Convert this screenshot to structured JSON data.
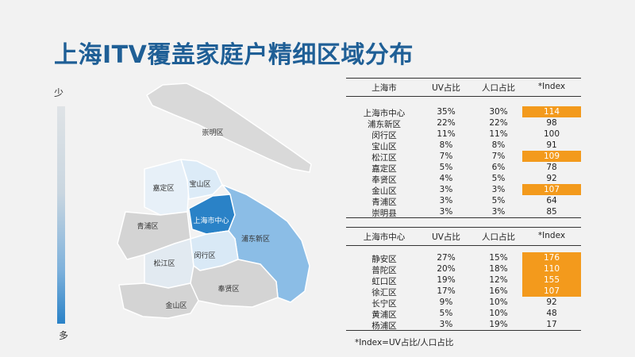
{
  "title": "上海ITV覆盖家庭户精细区域分布",
  "legend": {
    "top_label": "少",
    "bottom_label": "多"
  },
  "map": {
    "districts": [
      {
        "key": "chongming",
        "label": "崇明区",
        "color": "#d9d9d9"
      },
      {
        "key": "baoshan",
        "label": "宝山区",
        "color": "#dcebf7"
      },
      {
        "key": "jiading",
        "label": "嘉定区",
        "color": "#e7f0f8"
      },
      {
        "key": "qingpu",
        "label": "青浦区",
        "color": "#d4d4d4"
      },
      {
        "key": "center",
        "label": "上海市中心",
        "color": "#2a82c7"
      },
      {
        "key": "pudong",
        "label": "浦东新区",
        "color": "#8bbde6"
      },
      {
        "key": "songjiang",
        "label": "松江区",
        "color": "#e2eaf1"
      },
      {
        "key": "minhang",
        "label": "闵行区",
        "color": "#d9e9f6"
      },
      {
        "key": "fengxian",
        "label": "奉贤区",
        "color": "#d4d4d4"
      },
      {
        "key": "jinshan",
        "label": "金山区",
        "color": "#d4d4d4"
      }
    ]
  },
  "table1": {
    "headers": [
      "上海市",
      "UV占比",
      "人口占比",
      "*Index"
    ],
    "rows": [
      {
        "name": "上海市中心",
        "uv": "35%",
        "pop": "30%",
        "index": "114",
        "hl": true
      },
      {
        "name": "浦东新区",
        "uv": "22%",
        "pop": "22%",
        "index": "98",
        "hl": false
      },
      {
        "name": "闵行区",
        "uv": "11%",
        "pop": "11%",
        "index": "100",
        "hl": false
      },
      {
        "name": "宝山区",
        "uv": "8%",
        "pop": "8%",
        "index": "91",
        "hl": false
      },
      {
        "name": "松江区",
        "uv": "7%",
        "pop": "7%",
        "index": "109",
        "hl": true
      },
      {
        "name": "嘉定区",
        "uv": "5%",
        "pop": "6%",
        "index": "78",
        "hl": false
      },
      {
        "name": "奉贤区",
        "uv": "4%",
        "pop": "5%",
        "index": "92",
        "hl": false
      },
      {
        "name": "金山区",
        "uv": "3%",
        "pop": "3%",
        "index": "107",
        "hl": true
      },
      {
        "name": "青浦区",
        "uv": "3%",
        "pop": "5%",
        "index": "64",
        "hl": false
      },
      {
        "name": "崇明县",
        "uv": "3%",
        "pop": "3%",
        "index": "85",
        "hl": false
      }
    ]
  },
  "table2": {
    "headers": [
      "上海市中心",
      "UV占比",
      "人口占比",
      "*Index"
    ],
    "rows": [
      {
        "name": "静安区",
        "uv": "27%",
        "pop": "15%",
        "index": "176",
        "hl": true
      },
      {
        "name": "普陀区",
        "uv": "20%",
        "pop": "18%",
        "index": "110",
        "hl": true
      },
      {
        "name": "虹口区",
        "uv": "19%",
        "pop": "12%",
        "index": "155",
        "hl": true
      },
      {
        "name": "徐汇区",
        "uv": "17%",
        "pop": "16%",
        "index": "107",
        "hl": true
      },
      {
        "name": "长宁区",
        "uv": "9%",
        "pop": "10%",
        "index": "92",
        "hl": false
      },
      {
        "name": "黄浦区",
        "uv": "5%",
        "pop": "10%",
        "index": "48",
        "hl": false
      },
      {
        "name": "杨浦区",
        "uv": "3%",
        "pop": "19%",
        "index": "17",
        "hl": false
      }
    ]
  },
  "footnote": "*Index=UV占比/人口占比",
  "colors": {
    "title": "#1f5f96",
    "highlight": "#f39a1c"
  }
}
